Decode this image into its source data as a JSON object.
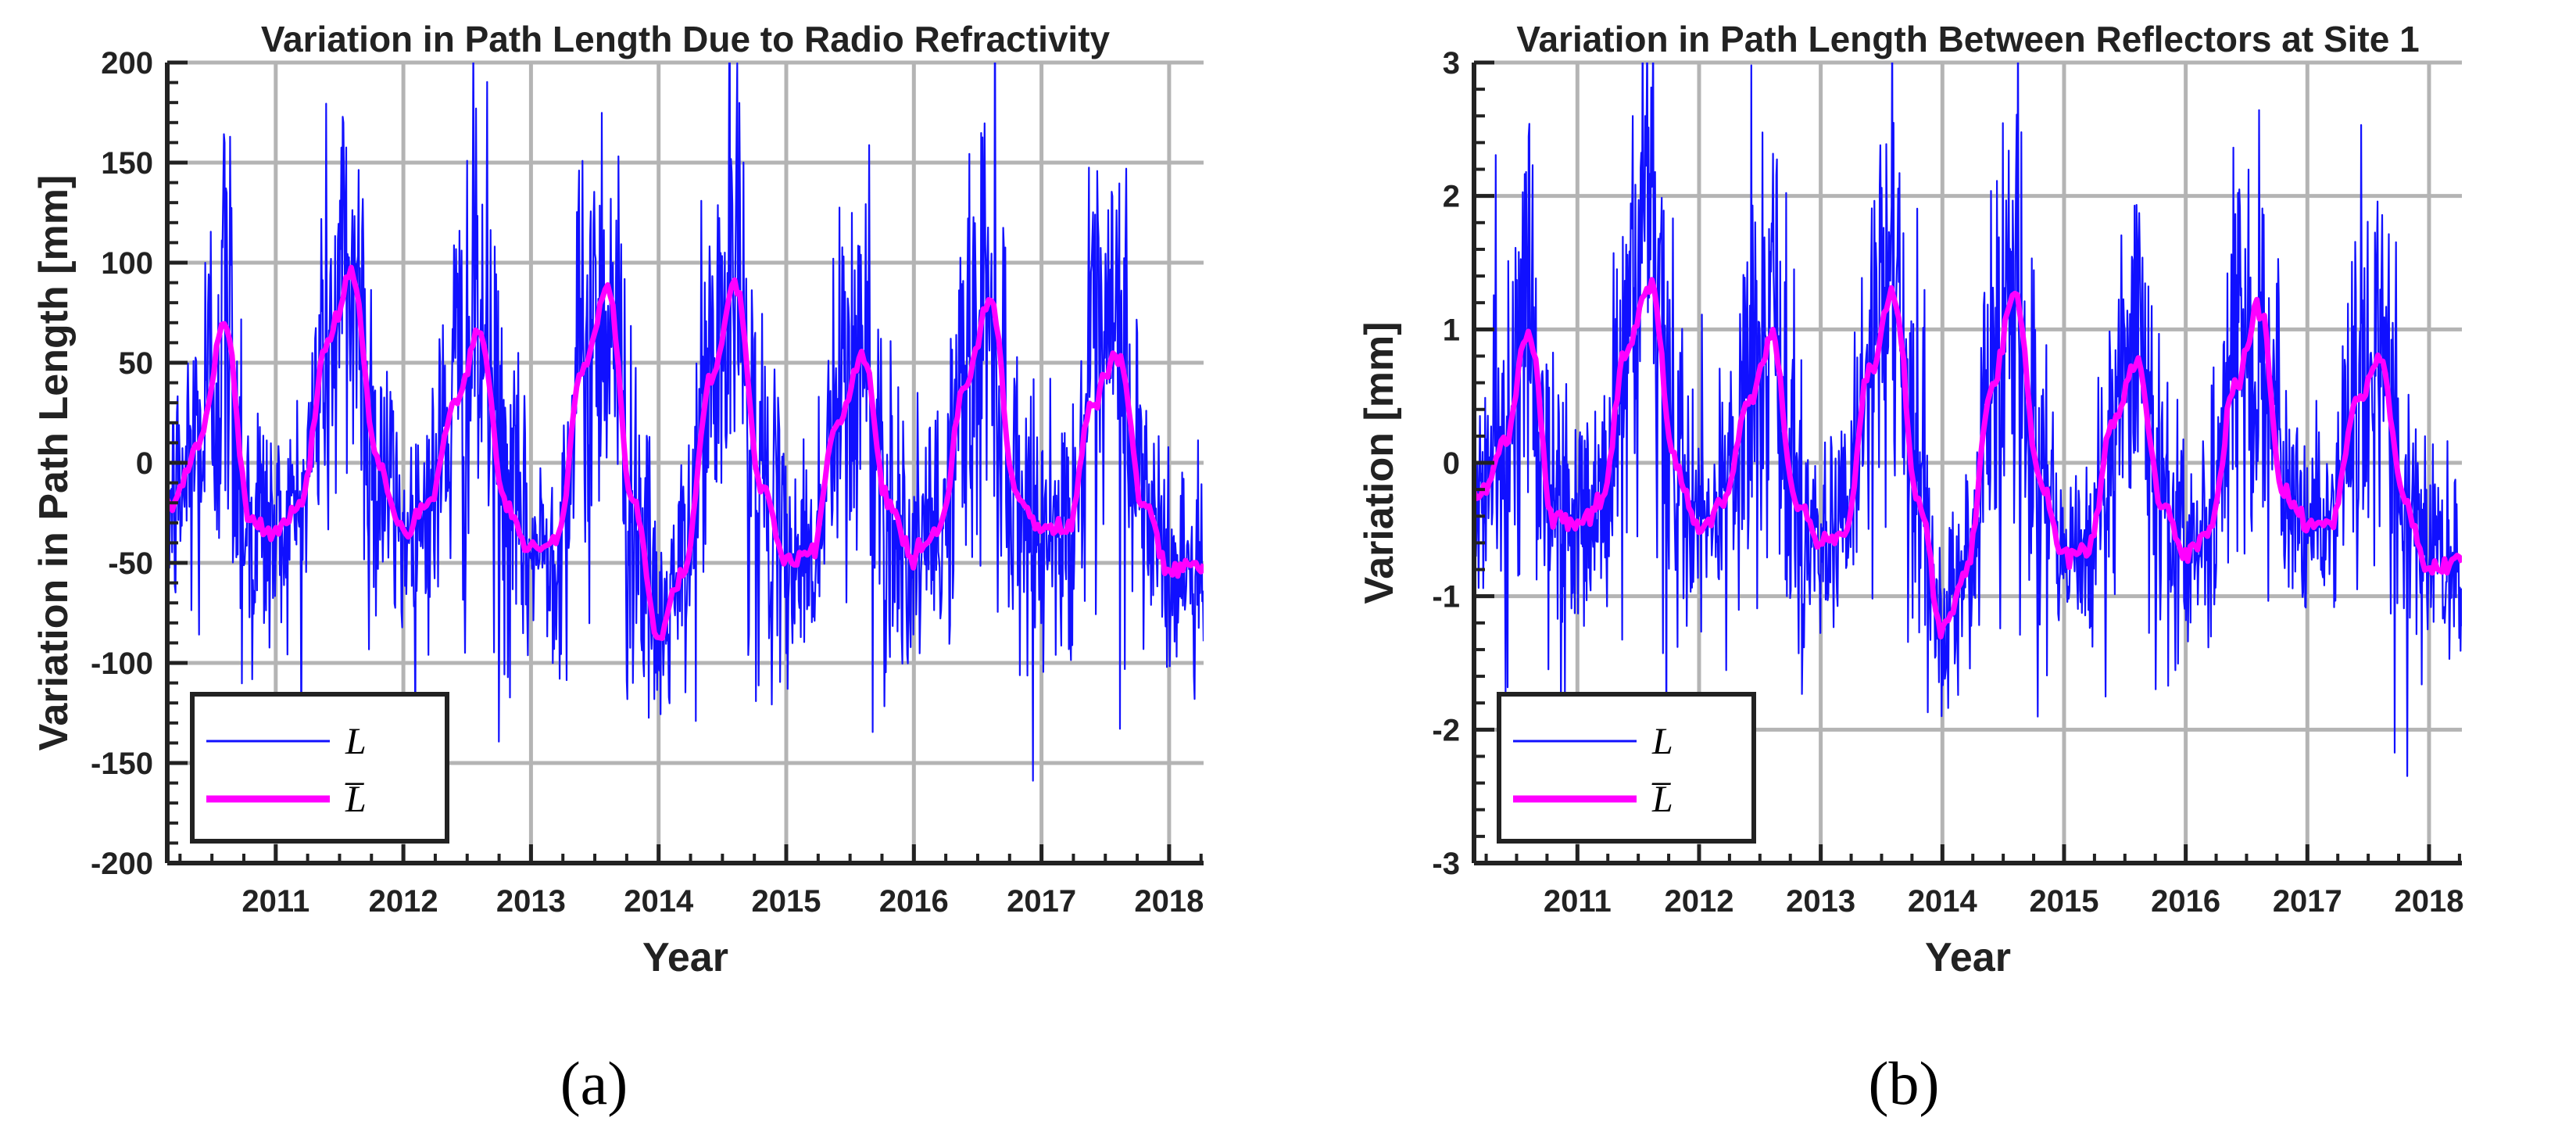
{
  "chart_data": [
    {
      "type": "line",
      "panel_label": "(a)",
      "title": "Variation in Path Length Due to Radio Refractivity",
      "xlabel": "Year",
      "ylabel": "Variation in Path Length [mm]",
      "xlim": [
        2010.15,
        2018.27
      ],
      "ylim": [
        -200,
        200
      ],
      "x_ticks": [
        2011,
        2012,
        2013,
        2014,
        2015,
        2016,
        2017,
        2018
      ],
      "y_ticks": [
        -200,
        -150,
        -100,
        -50,
        0,
        50,
        100,
        150,
        200
      ],
      "legend": {
        "position": "bottom-left",
        "entries": [
          "L",
          "L̅"
        ]
      },
      "series": [
        {
          "name": "L",
          "color": "#1010ff",
          "style": "noisy-daily",
          "amplitude_mm": 55,
          "x": [
            2010.2,
            2010.4,
            2010.6,
            2010.8,
            2011.0,
            2011.2,
            2011.4,
            2011.6,
            2011.8,
            2012.0,
            2012.2,
            2012.4,
            2012.6,
            2012.8,
            2013.0,
            2013.2,
            2013.4,
            2013.6,
            2013.8,
            2014.0,
            2014.2,
            2014.4,
            2014.6,
            2014.8,
            2015.0,
            2015.2,
            2015.4,
            2015.6,
            2015.8,
            2016.0,
            2016.2,
            2016.4,
            2016.6,
            2016.8,
            2017.0,
            2017.2,
            2017.4,
            2017.6,
            2017.8,
            2018.0,
            2018.27
          ],
          "values": [
            -20,
            10,
            70,
            -30,
            -35,
            -20,
            60,
            95,
            0,
            -35,
            -20,
            30,
            65,
            -20,
            -45,
            -40,
            45,
            88,
            -20,
            -85,
            -55,
            40,
            90,
            -10,
            -48,
            -45,
            20,
            52,
            -20,
            -47,
            -35,
            40,
            82,
            -15,
            -35,
            -32,
            30,
            55,
            -20,
            -55,
            -52
          ]
        },
        {
          "name": "L̅",
          "color": "#ff00ff",
          "style": "smooth",
          "x": [
            2010.2,
            2010.4,
            2010.6,
            2010.8,
            2011.0,
            2011.2,
            2011.4,
            2011.6,
            2011.8,
            2012.0,
            2012.2,
            2012.4,
            2012.6,
            2012.8,
            2013.0,
            2013.2,
            2013.4,
            2013.6,
            2013.8,
            2014.0,
            2014.2,
            2014.4,
            2014.6,
            2014.8,
            2015.0,
            2015.2,
            2015.4,
            2015.6,
            2015.8,
            2016.0,
            2016.2,
            2016.4,
            2016.6,
            2016.8,
            2017.0,
            2017.2,
            2017.4,
            2017.6,
            2017.8,
            2018.0,
            2018.27
          ],
          "values": [
            -20,
            10,
            70,
            -30,
            -35,
            -20,
            60,
            95,
            0,
            -35,
            -20,
            30,
            65,
            -20,
            -45,
            -40,
            45,
            88,
            -20,
            -85,
            -55,
            40,
            90,
            -10,
            -48,
            -45,
            20,
            52,
            -20,
            -47,
            -35,
            40,
            82,
            -15,
            -35,
            -32,
            30,
            55,
            -20,
            -55,
            -52
          ]
        }
      ]
    },
    {
      "type": "line",
      "panel_label": "(b)",
      "title": "Variation in Path Length Between Reflectors at Site 1",
      "xlabel": "Year",
      "ylabel": "Variation [mm]",
      "xlim": [
        2010.15,
        2018.27
      ],
      "ylim": [
        -3,
        3
      ],
      "x_ticks": [
        2011,
        2012,
        2013,
        2014,
        2015,
        2016,
        2017,
        2018
      ],
      "y_ticks": [
        -3,
        -2,
        -1,
        0,
        1,
        2,
        3
      ],
      "legend": {
        "position": "bottom-left",
        "entries": [
          "L",
          "L̅"
        ]
      },
      "series": [
        {
          "name": "L",
          "color": "#1010ff",
          "style": "noisy-daily",
          "amplitude_mm": 0.8,
          "x": [
            2010.2,
            2010.4,
            2010.6,
            2010.8,
            2011.0,
            2011.2,
            2011.4,
            2011.6,
            2011.8,
            2012.0,
            2012.2,
            2012.4,
            2012.6,
            2012.8,
            2013.0,
            2013.2,
            2013.4,
            2013.6,
            2013.8,
            2014.0,
            2014.2,
            2014.4,
            2014.6,
            2014.8,
            2015.0,
            2015.2,
            2015.4,
            2015.6,
            2015.8,
            2016.0,
            2016.2,
            2016.4,
            2016.6,
            2016.8,
            2017.0,
            2017.2,
            2017.4,
            2017.6,
            2017.8,
            2018.0,
            2018.27
          ],
          "values": [
            -0.25,
            0.15,
            1.0,
            -0.4,
            -0.45,
            -0.3,
            0.85,
            1.35,
            0.0,
            -0.5,
            -0.3,
            0.45,
            0.92,
            -0.3,
            -0.6,
            -0.55,
            0.65,
            1.25,
            -0.3,
            -1.25,
            -0.8,
            0.55,
            1.28,
            -0.15,
            -0.7,
            -0.65,
            0.3,
            0.75,
            -0.3,
            -0.68,
            -0.5,
            0.55,
            1.18,
            -0.2,
            -0.48,
            -0.45,
            0.45,
            0.78,
            -0.3,
            -0.8,
            -0.72
          ]
        },
        {
          "name": "L̅",
          "color": "#ff00ff",
          "style": "smooth",
          "x": [
            2010.2,
            2010.4,
            2010.6,
            2010.8,
            2011.0,
            2011.2,
            2011.4,
            2011.6,
            2011.8,
            2012.0,
            2012.2,
            2012.4,
            2012.6,
            2012.8,
            2013.0,
            2013.2,
            2013.4,
            2013.6,
            2013.8,
            2014.0,
            2014.2,
            2014.4,
            2014.6,
            2014.8,
            2015.0,
            2015.2,
            2015.4,
            2015.6,
            2015.8,
            2016.0,
            2016.2,
            2016.4,
            2016.6,
            2016.8,
            2017.0,
            2017.2,
            2017.4,
            2017.6,
            2017.8,
            2018.0,
            2018.27
          ],
          "values": [
            -0.25,
            0.15,
            1.0,
            -0.4,
            -0.45,
            -0.3,
            0.85,
            1.35,
            0.0,
            -0.5,
            -0.3,
            0.45,
            0.92,
            -0.3,
            -0.6,
            -0.55,
            0.65,
            1.25,
            -0.3,
            -1.25,
            -0.8,
            0.55,
            1.28,
            -0.15,
            -0.7,
            -0.65,
            0.3,
            0.75,
            -0.3,
            -0.68,
            -0.5,
            0.55,
            1.18,
            -0.2,
            -0.48,
            -0.45,
            0.45,
            0.78,
            -0.3,
            -0.8,
            -0.72
          ]
        }
      ]
    }
  ]
}
